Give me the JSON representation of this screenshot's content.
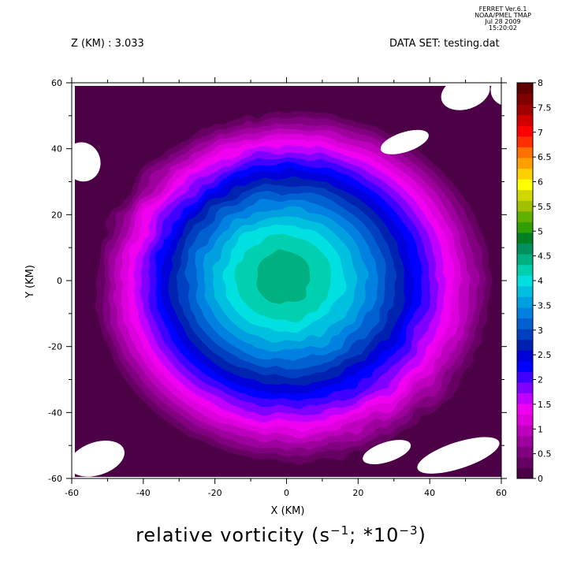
{
  "header": {
    "line1": "FERRET  Ver.6.1",
    "line2": "NOAA/PMEL TMAP",
    "line3": "Jul 28 2009 15:20:02"
  },
  "zlabel": "Z (KM) : 3.033",
  "dataset": "DATA SET: testing.dat",
  "chart_data": {
    "type": "contour",
    "title_text": "relative vorticity (s",
    "title_sup1": "−1",
    "title_mid": "; *10",
    "title_sup2": "−3",
    "title_end": ")",
    "xlabel": "X (KM)",
    "ylabel": "Y (KM)",
    "xlim": [
      -60,
      60
    ],
    "ylim": [
      -60,
      60
    ],
    "xticks": [
      -60,
      -40,
      -20,
      0,
      20,
      40,
      60
    ],
    "yticks": [
      -60,
      -40,
      -20,
      0,
      20,
      40,
      60
    ],
    "levels": [
      0,
      0.25,
      0.5,
      0.75,
      1,
      1.25,
      1.5,
      1.75,
      2,
      2.25,
      2.5,
      2.75,
      3,
      3.25,
      3.5,
      3.75,
      4,
      4.25,
      4.5,
      4.75,
      5,
      5.25,
      5.5,
      5.75,
      6,
      6.25,
      6.5,
      6.75,
      7,
      7.25,
      7.5,
      7.75,
      8
    ],
    "colorbar_labels": [
      "0",
      "0.5",
      "1",
      "1.5",
      "2",
      "2.5",
      "3",
      "3.5",
      "4",
      "4.5",
      "5",
      "5.5",
      "6",
      "6.5",
      "7",
      "7.5",
      "8"
    ],
    "colors": [
      "#4c0046",
      "#660063",
      "#800080",
      "#9e009e",
      "#bd00bd",
      "#dc00dc",
      "#f000f0",
      "#c000ff",
      "#8000ff",
      "#4000ff",
      "#0000ff",
      "#0000d9",
      "#0020b0",
      "#0040c0",
      "#0060d0",
      "#0080e0",
      "#00a0e0",
      "#00c0e0",
      "#00e0e0",
      "#00d0b0",
      "#00b080",
      "#009060",
      "#008020",
      "#30a000",
      "#60b000",
      "#a0c000",
      "#d0d800",
      "#ffff00",
      "#ffd000",
      "#ffa000",
      "#ff7000",
      "#ff3000",
      "#ff0000",
      "#d00000",
      "#a00000",
      "#800000",
      "#600000"
    ],
    "peak_value": 5,
    "peak_center_km": [
      -1,
      1
    ],
    "eddy_center_km": [
      2,
      -2
    ],
    "undefined_regions": [
      "top-right",
      "upper-left",
      "right",
      "bottom-left",
      "bottom-right"
    ],
    "colorbar_position": "right"
  }
}
